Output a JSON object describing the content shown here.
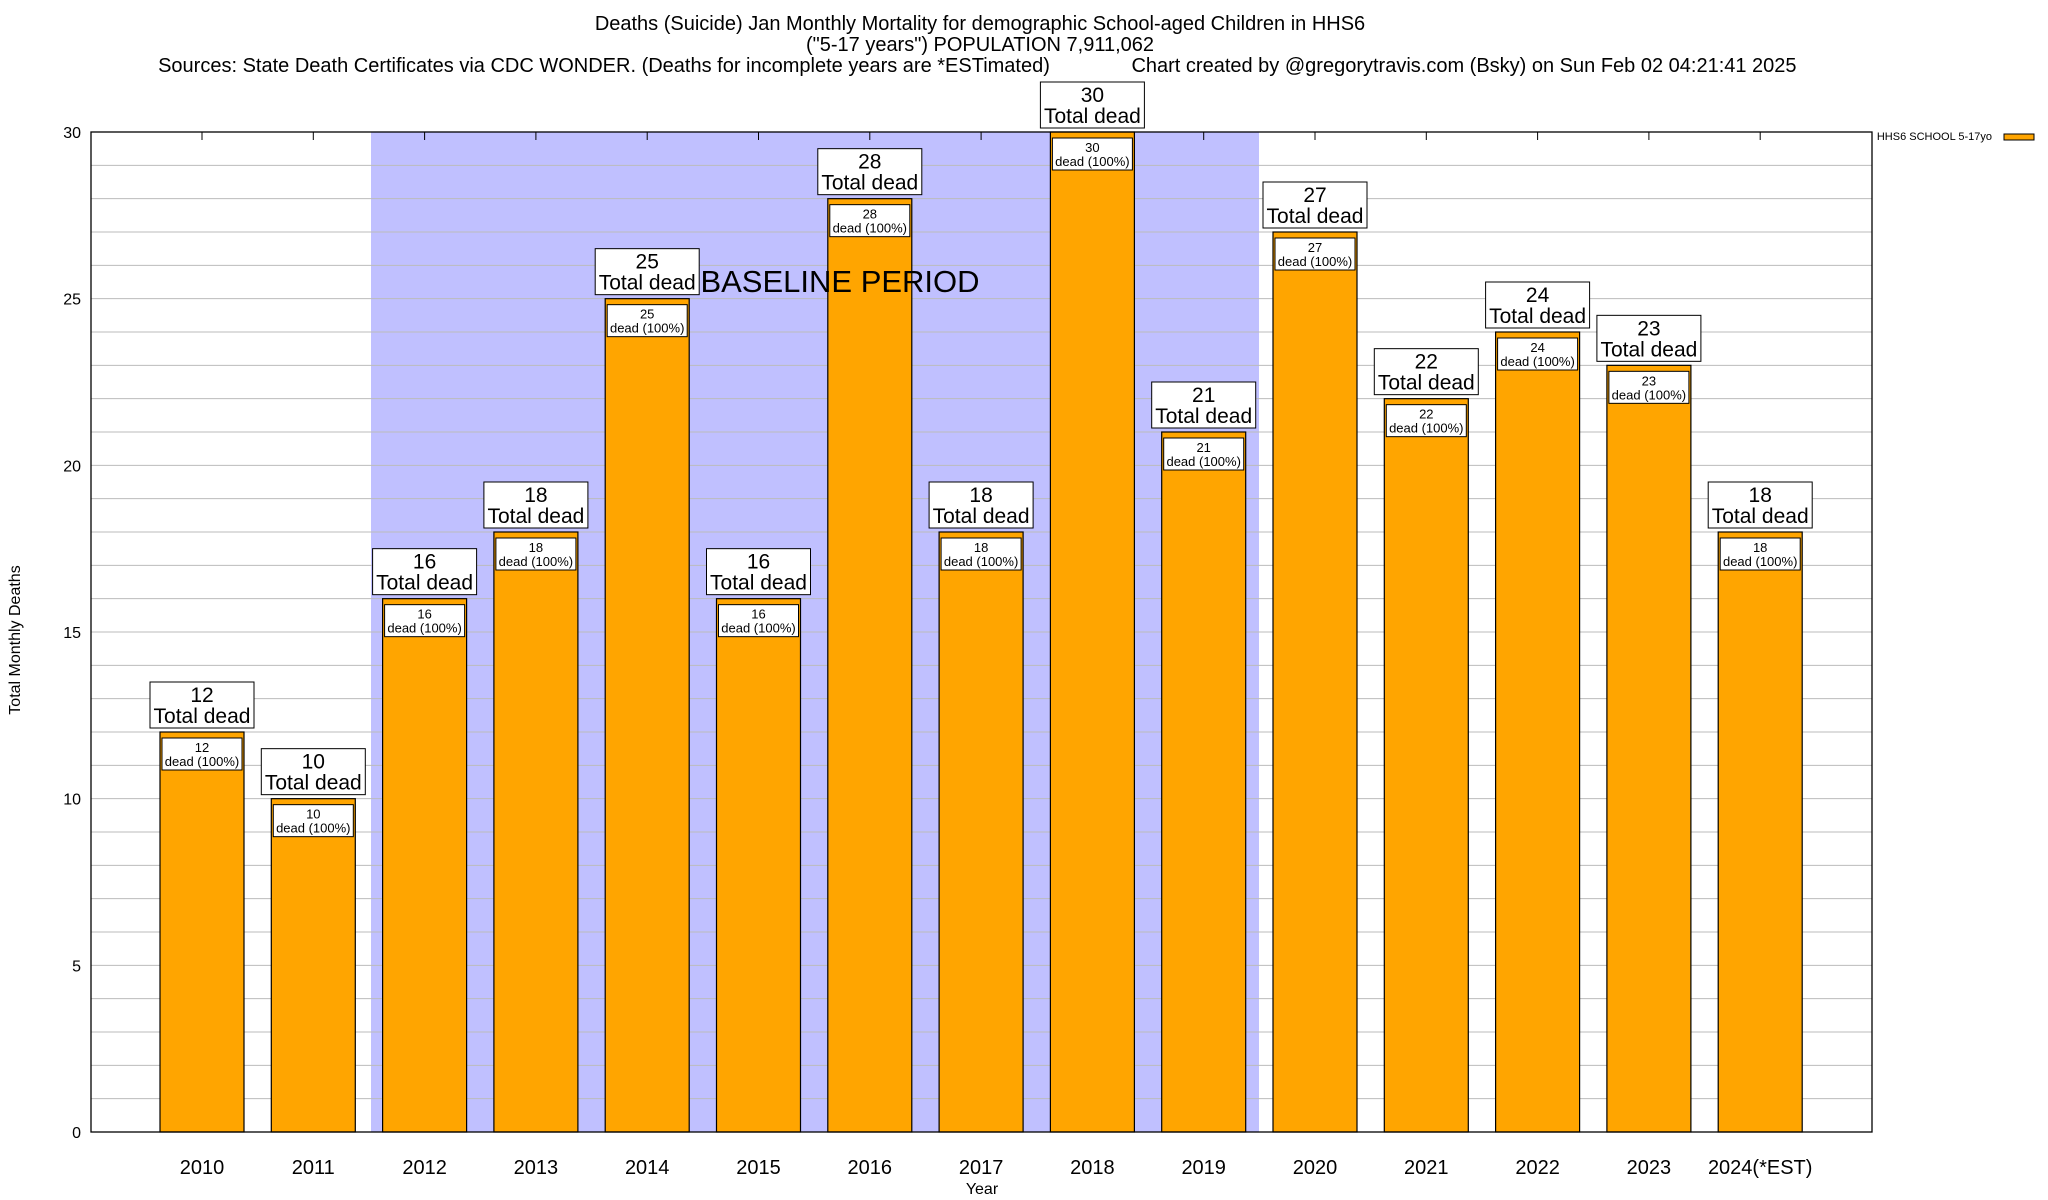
{
  "chart_data": {
    "type": "bar",
    "title": [
      "Deaths (Suicide) Jan Monthly Mortality for demographic School-aged Children in HHS6",
      "(\"5-17 years\") POPULATION 7,911,062"
    ],
    "sources": "Sources: State Death Certificates via CDC WONDER. (Deaths for incomplete years are *ESTimated)",
    "credit": "Chart created by @gregorytravis.com (Bsky) on Sun Feb 02 04:21:41 2025",
    "xlabel": "Year",
    "ylabel": "Total Monthly Deaths",
    "ylim": [
      0,
      30
    ],
    "yticks": [
      0,
      5,
      10,
      15,
      20,
      25,
      30
    ],
    "categories": [
      "2010",
      "2011",
      "2012",
      "2013",
      "2014",
      "2015",
      "2016",
      "2017",
      "2018",
      "2019",
      "2020",
      "2021",
      "2022",
      "2023",
      "2024(*EST)"
    ],
    "series": [
      {
        "name": "HHS6 SCHOOL 5-17yo",
        "values": [
          12,
          10,
          16,
          18,
          25,
          16,
          28,
          18,
          30,
          21,
          27,
          22,
          24,
          23,
          18
        ],
        "color": "#FFA500"
      }
    ],
    "total_label": "Total dead",
    "inner_label": "dead (100%)",
    "shaded_region": {
      "label": "BASELINE PERIOD",
      "from": "2012",
      "to": "2019",
      "color": "#C0C0FF"
    },
    "legend": "top-right"
  }
}
